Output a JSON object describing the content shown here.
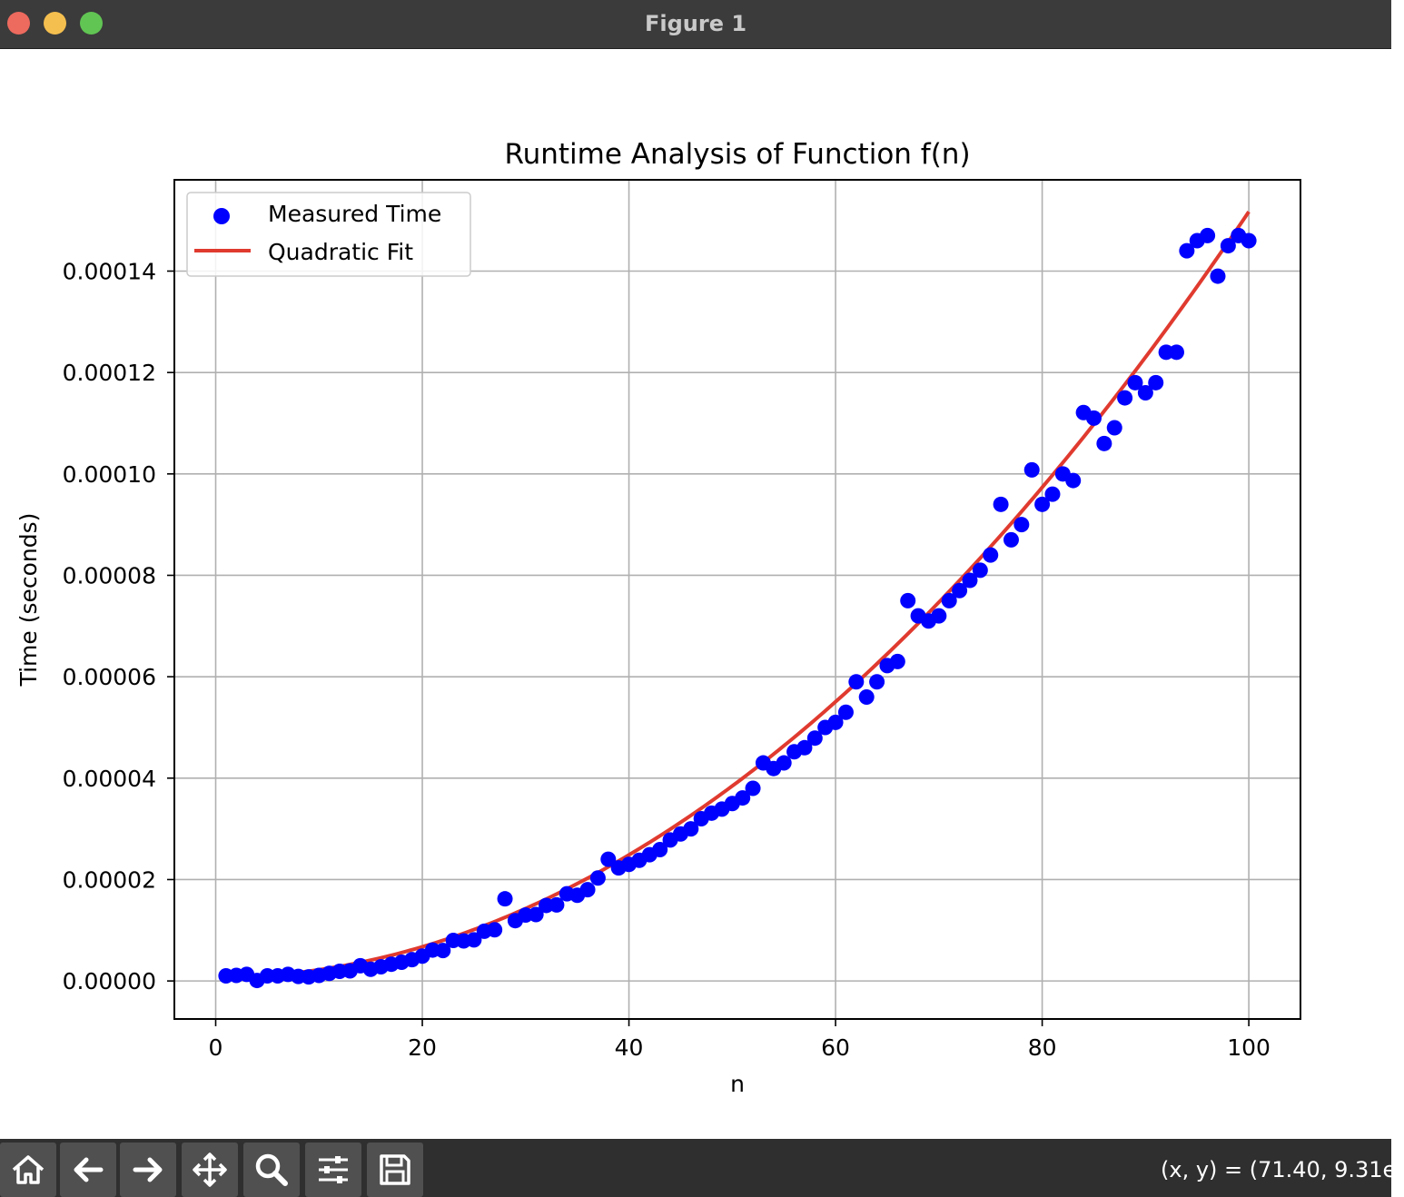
{
  "window": {
    "title": "Figure 1"
  },
  "toolbar": {
    "buttons": [
      {
        "name": "home-button",
        "icon": "home-icon"
      },
      {
        "name": "back-button",
        "icon": "arrow-left-icon"
      },
      {
        "name": "forward-button",
        "icon": "arrow-right-icon"
      },
      {
        "name": "pan-button",
        "icon": "move-icon"
      },
      {
        "name": "zoom-button",
        "icon": "search-icon"
      },
      {
        "name": "configure-subplots-button",
        "icon": "sliders-icon"
      },
      {
        "name": "save-button",
        "icon": "floppy-disk-icon"
      }
    ],
    "coordinates": "(x, y) = (71.40, 9.31e-"
  },
  "chart_data": {
    "type": "scatter",
    "title": "Runtime Analysis of Function f(n)",
    "xlabel": "n",
    "ylabel": "Time (seconds)",
    "xlim": [
      -4,
      105
    ],
    "ylim": [
      -7.5e-06,
      0.000158
    ],
    "xticks": [
      0,
      20,
      40,
      60,
      80,
      100
    ],
    "xtick_labels": [
      "0",
      "20",
      "40",
      "60",
      "80",
      "100"
    ],
    "yticks": [
      0,
      2e-05,
      4e-05,
      6e-05,
      8e-05,
      0.0001,
      0.00012,
      0.00014
    ],
    "ytick_labels": [
      "0.00000",
      "0.00002",
      "0.00004",
      "0.00006",
      "0.00008",
      "0.00010",
      "0.00012",
      "0.00014"
    ],
    "grid": true,
    "legend_position": "upper-left",
    "series": [
      {
        "name": "Measured Time",
        "kind": "scatter",
        "color": "#0000ff",
        "x": [
          1,
          2,
          3,
          4,
          5,
          6,
          7,
          8,
          9,
          10,
          11,
          12,
          13,
          14,
          15,
          16,
          17,
          18,
          19,
          20,
          21,
          22,
          23,
          24,
          25,
          26,
          27,
          28,
          29,
          30,
          31,
          32,
          33,
          34,
          35,
          36,
          37,
          38,
          39,
          40,
          41,
          42,
          43,
          44,
          45,
          46,
          47,
          48,
          49,
          50,
          51,
          52,
          53,
          54,
          55,
          56,
          57,
          58,
          59,
          60,
          61,
          62,
          63,
          64,
          65,
          66,
          67,
          68,
          69,
          70,
          71,
          72,
          73,
          74,
          75,
          76,
          77,
          78,
          79,
          80,
          81,
          82,
          83,
          84,
          85,
          86,
          87,
          88,
          89,
          90,
          91,
          92,
          93,
          94,
          95,
          96,
          97,
          98,
          99,
          100
        ],
        "y": [
          1e-06,
          1.1e-06,
          1.3e-06,
          1e-07,
          1e-06,
          1e-06,
          1.3e-06,
          9e-07,
          8e-07,
          1.1e-06,
          1.5e-06,
          1.9e-06,
          2e-06,
          3e-06,
          2.3e-06,
          2.8e-06,
          3.3e-06,
          3.7e-06,
          4.2e-06,
          4.9e-06,
          6.1e-06,
          6e-06,
          8e-06,
          7.9e-06,
          8.1e-06,
          9.8e-06,
          1.01e-05,
          1.62e-05,
          1.19e-05,
          1.3e-05,
          1.31e-05,
          1.49e-05,
          1.5e-05,
          1.72e-05,
          1.69e-05,
          1.8e-05,
          2.03e-05,
          2.4e-05,
          2.23e-05,
          2.3e-05,
          2.38e-05,
          2.49e-05,
          2.59e-05,
          2.78e-05,
          2.9e-05,
          3e-05,
          3.2e-05,
          3.31e-05,
          3.39e-05,
          3.5e-05,
          3.61e-05,
          3.8e-05,
          4.3e-05,
          4.19e-05,
          4.3e-05,
          4.52e-05,
          4.6e-05,
          4.79e-05,
          5e-05,
          5.1e-05,
          5.3e-05,
          5.9e-05,
          5.6e-05,
          5.9e-05,
          6.22e-05,
          6.3e-05,
          7.5e-05,
          7.2e-05,
          7.1e-05,
          7.2e-05,
          7.5e-05,
          7.7e-05,
          7.9e-05,
          8.1e-05,
          8.4e-05,
          9.4e-05,
          8.7e-05,
          9e-05,
          0.0001008,
          9.4e-05,
          9.6e-05,
          0.0001,
          9.87e-05,
          0.0001121,
          0.000111,
          0.000106,
          0.0001091,
          0.000115,
          0.000118,
          0.000116,
          0.000118,
          0.000124,
          0.000124,
          0.000144,
          0.000146,
          0.000147,
          0.000139,
          0.000145,
          0.000147,
          0.000146
        ]
      },
      {
        "name": "Quadratic Fit",
        "kind": "line",
        "color": "#e03a2f",
        "coefficients": {
          "a": 1.51e-08,
          "b": 0.0,
          "c": 7e-07
        },
        "x_range": [
          1,
          100
        ]
      }
    ]
  }
}
